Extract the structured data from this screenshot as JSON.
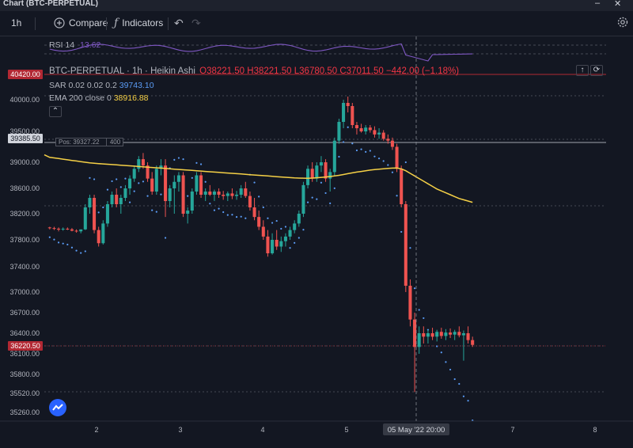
{
  "window": {
    "title": "Chart (BTC-PERPETUAL)",
    "minimize": "–",
    "close": "✕"
  },
  "toolbar": {
    "interval": "1h",
    "compare_label": "Compare",
    "indicators_label": "Indicators",
    "undo_icon": "undo-icon",
    "redo_icon": "redo-icon",
    "settings_icon": "gear-icon"
  },
  "legend": {
    "rsi_label": "RSI 14",
    "rsi_value": "13.62",
    "symbol": "BTC-PERPETUAL",
    "interval": "1h",
    "style": "Heikin Ashi",
    "ohlc": {
      "o": "O38221.50",
      "h": "H38221.50",
      "l": "L36780.50",
      "c": "C37011.50",
      "chg": "−442.00 (−1.18%)"
    },
    "sar_label": "SAR 0.02 0.02 0.2",
    "sar_value": "39743.10",
    "ema_label": "EMA 200 close 0",
    "ema_value": "38916.88",
    "position_label": "Pos: 39327.22",
    "position_qty": "400"
  },
  "price_tags": {
    "top": "40420.00",
    "position": "39385.50",
    "last": "36220.50"
  },
  "colors": {
    "up": "#26a69a",
    "down": "#ef5350",
    "ema": "#f5d046",
    "sar": "#5b9cf6",
    "rsi": "#7e57c2",
    "red_tag": "#b22833",
    "background": "#131722"
  },
  "chart_data": {
    "type": "candlestick",
    "y_ticks": [
      "40000.00",
      "39500.00",
      "39000.00",
      "38600.00",
      "38200.00",
      "37800.00",
      "37400.00",
      "37000.00",
      "36700.00",
      "36400.00",
      "36100.00",
      "35800.00",
      "35520.00",
      "35260.00"
    ],
    "x_ticks": [
      "2",
      "3",
      "4",
      "5",
      "7",
      "8"
    ],
    "crosshair_label": "05 May '22   20:00",
    "candles": [
      [
        37990,
        38000,
        37960,
        37980
      ],
      [
        37980,
        38000,
        37950,
        37970
      ],
      [
        37970,
        37990,
        37930,
        37960
      ],
      [
        37960,
        37990,
        37940,
        37970
      ],
      [
        37970,
        37990,
        37950,
        37960
      ],
      [
        37960,
        37980,
        37930,
        37940
      ],
      [
        37940,
        37960,
        37910,
        37930
      ],
      [
        37930,
        37950,
        37900,
        37960
      ],
      [
        37960,
        38350,
        37950,
        38300
      ],
      [
        38300,
        38500,
        38200,
        38450
      ],
      [
        38450,
        38500,
        37900,
        37950
      ],
      [
        37950,
        38000,
        37700,
        37750
      ],
      [
        37750,
        38100,
        37730,
        38050
      ],
      [
        38050,
        38400,
        38000,
        38350
      ],
      [
        38350,
        38550,
        38300,
        38500
      ],
      [
        38500,
        38600,
        38300,
        38350
      ],
      [
        38350,
        38500,
        38200,
        38450
      ],
      [
        38450,
        38650,
        38400,
        38600
      ],
      [
        38600,
        38800,
        38500,
        38750
      ],
      [
        38750,
        38950,
        38700,
        38900
      ],
      [
        38900,
        39100,
        38850,
        39050
      ],
      [
        39050,
        39150,
        38900,
        38950
      ],
      [
        38950,
        39000,
        38700,
        38750
      ],
      [
        38750,
        38850,
        38500,
        38550
      ],
      [
        38550,
        38950,
        38500,
        38900
      ],
      [
        38900,
        39050,
        38800,
        38950
      ],
      [
        38950,
        39050,
        38150,
        38400
      ],
      [
        38400,
        38650,
        38300,
        38600
      ],
      [
        38600,
        38800,
        38200,
        38700
      ],
      [
        38700,
        38850,
        38550,
        38800
      ],
      [
        38800,
        38850,
        38150,
        38200
      ],
      [
        38200,
        38300,
        38050,
        38250
      ],
      [
        38250,
        38600,
        38200,
        38550
      ],
      [
        38550,
        38850,
        38500,
        38800
      ],
      [
        38800,
        38850,
        38450,
        38500
      ],
      [
        38500,
        38600,
        38400,
        38550
      ],
      [
        38550,
        38650,
        38480,
        38500
      ],
      [
        38500,
        38580,
        38400,
        38550
      ],
      [
        38550,
        38600,
        38450,
        38500
      ],
      [
        38500,
        38560,
        38420,
        38480
      ],
      [
        38480,
        38550,
        38400,
        38520
      ],
      [
        38520,
        38600,
        38430,
        38480
      ],
      [
        38480,
        38560,
        38420,
        38500
      ],
      [
        38500,
        38650,
        38450,
        38600
      ],
      [
        38600,
        38700,
        38450,
        38480
      ],
      [
        38480,
        38550,
        38250,
        38300
      ],
      [
        38300,
        38450,
        38100,
        38150
      ],
      [
        38150,
        38250,
        37950,
        38000
      ],
      [
        38000,
        38100,
        37800,
        37850
      ],
      [
        37850,
        37950,
        37550,
        37600
      ],
      [
        37600,
        37900,
        37580,
        37800
      ],
      [
        37800,
        37950,
        37650,
        37700
      ],
      [
        37700,
        37850,
        37620,
        37780
      ],
      [
        37780,
        37900,
        37700,
        37850
      ],
      [
        37850,
        38000,
        37800,
        37950
      ],
      [
        37950,
        38100,
        37900,
        38050
      ],
      [
        38050,
        38250,
        38000,
        38200
      ],
      [
        38200,
        38700,
        38150,
        38650
      ],
      [
        38650,
        38950,
        38600,
        38900
      ],
      [
        38900,
        39000,
        38700,
        38750
      ],
      [
        38750,
        39000,
        38700,
        38950
      ],
      [
        38950,
        39100,
        38850,
        39000
      ],
      [
        39000,
        39050,
        38700,
        38750
      ],
      [
        38750,
        38900,
        38550,
        38850
      ],
      [
        38850,
        39400,
        38800,
        39350
      ],
      [
        39350,
        39700,
        39300,
        39650
      ],
      [
        39650,
        40000,
        39550,
        39950
      ],
      [
        39950,
        40050,
        39800,
        39900
      ],
      [
        39900,
        39950,
        39550,
        39600
      ],
      [
        39600,
        39650,
        39450,
        39550
      ],
      [
        39550,
        39620,
        39480,
        39500
      ],
      [
        39500,
        39600,
        39450,
        39560
      ],
      [
        39560,
        39600,
        39480,
        39520
      ],
      [
        39520,
        39580,
        39400,
        39450
      ],
      [
        39450,
        39550,
        39380,
        39480
      ],
      [
        39480,
        39520,
        39350,
        39380
      ],
      [
        39380,
        39450,
        39300,
        39350
      ],
      [
        39350,
        39400,
        39200,
        39250
      ],
      [
        39250,
        39300,
        38850,
        38900
      ],
      [
        38900,
        38950,
        38300,
        38350
      ],
      [
        38350,
        38400,
        37000,
        37100
      ],
      [
        37100,
        37200,
        36500,
        36600
      ],
      [
        36600,
        36700,
        35540,
        36200
      ],
      [
        36200,
        36500,
        36100,
        36400
      ],
      [
        36400,
        36500,
        36250,
        36350
      ],
      [
        36350,
        36450,
        36250,
        36400
      ],
      [
        36400,
        36480,
        36300,
        36350
      ],
      [
        36350,
        36450,
        36280,
        36420
      ],
      [
        36420,
        36480,
        36320,
        36360
      ],
      [
        36360,
        36460,
        36300,
        36410
      ],
      [
        36410,
        36470,
        36330,
        36380
      ],
      [
        36380,
        36450,
        36300,
        36420
      ],
      [
        36420,
        36500,
        36340,
        36370
      ],
      [
        36370,
        36440,
        36000,
        36400
      ],
      [
        36400,
        36500,
        36250,
        36300
      ],
      [
        36300,
        36350,
        36200,
        36230
      ]
    ],
    "ema": [
      39080,
      39070,
      39060,
      39050,
      39040,
      39030,
      39020,
      39010,
      39000,
      38990,
      38985,
      38980,
      38975,
      38970,
      38965,
      38960,
      38955,
      38950,
      38945,
      38940,
      38935,
      38930,
      38925,
      38920,
      38915,
      38910,
      38905,
      38900,
      38895,
      38890,
      38885,
      38880,
      38875,
      38870,
      38865,
      38860,
      38855,
      38850,
      38845,
      38840,
      38835,
      38830,
      38825,
      38820,
      38815,
      38810,
      38805,
      38800,
      38795,
      38790,
      38785,
      38780,
      38775,
      38770,
      38765,
      38760,
      38758,
      38756,
      38755,
      38758,
      38762,
      38768,
      38775,
      38782,
      38790,
      38800,
      38812,
      38825,
      38838,
      38850,
      38860,
      38870,
      38880,
      38888,
      38895,
      38900,
      38905,
      38910,
      38912,
      38900,
      38870,
      38830,
      38790,
      38750,
      38710,
      38670,
      38630,
      38590,
      38560,
      38530,
      38500,
      38470,
      38440,
      38420,
      38400,
      38380
    ]
  }
}
